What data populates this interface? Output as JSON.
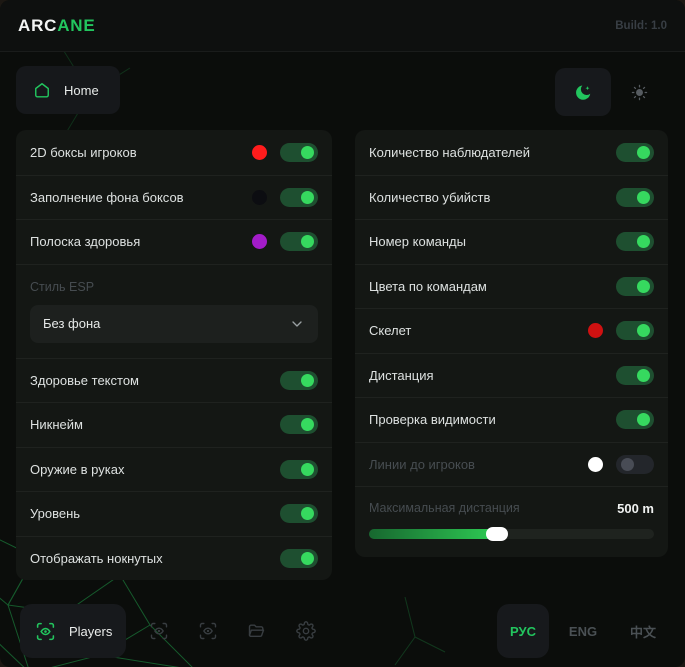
{
  "header": {
    "brand_prefix": "ARC",
    "brand_suffix": "ANE",
    "build_label": "Build: 1.0"
  },
  "nav": {
    "home_label": "Home",
    "theme_icons": [
      "moon",
      "sun"
    ],
    "active_theme": "dark"
  },
  "left_panel": {
    "rows": [
      {
        "label": "2D боксы игроков",
        "color": "#ff1c1c",
        "state": "on"
      },
      {
        "label": "Заполнение фона боксов",
        "color": "#0c0d11",
        "state": "on"
      },
      {
        "label": "Полоска здоровья",
        "color": "#a31cc9",
        "state": "on"
      }
    ],
    "style_group": {
      "label": "Стиль ESP",
      "dropdown_value": "Без фона"
    },
    "rows2": [
      {
        "label": "Здоровье текстом",
        "state": "on"
      },
      {
        "label": "Никнейм",
        "state": "on"
      },
      {
        "label": "Оружие в руках",
        "state": "on"
      },
      {
        "label": "Уровень",
        "state": "on"
      },
      {
        "label": "Отображать нокнутых",
        "state": "on"
      }
    ]
  },
  "right_panel": {
    "rows": [
      {
        "label": "Количество наблюдателей",
        "state": "on"
      },
      {
        "label": "Количество убийств",
        "state": "on"
      },
      {
        "label": "Номер команды",
        "state": "on"
      },
      {
        "label": "Цвета по командам",
        "state": "on"
      },
      {
        "label": "Скелет",
        "color": "#cf1111",
        "state": "on"
      },
      {
        "label": "Дистанция",
        "state": "on"
      },
      {
        "label": "Проверка видимости",
        "state": "on"
      },
      {
        "label": "Линии до игроков",
        "color": "#ffffff",
        "state": "off"
      }
    ],
    "slider": {
      "label": "Максимальная дистанция",
      "value": "500 m",
      "percent": 45
    }
  },
  "footer": {
    "players_label": "Players",
    "icons": [
      "scan-eye",
      "scan-eye",
      "folder",
      "gear"
    ],
    "languages": [
      {
        "label": "РУС",
        "active": true
      },
      {
        "label": "ENG",
        "active": false
      },
      {
        "label": "中文",
        "active": false
      }
    ]
  },
  "colors": {
    "accent": "#22c55e",
    "toggle_on_track": "#1e4f30",
    "toggle_on_knob": "#36d95f"
  }
}
